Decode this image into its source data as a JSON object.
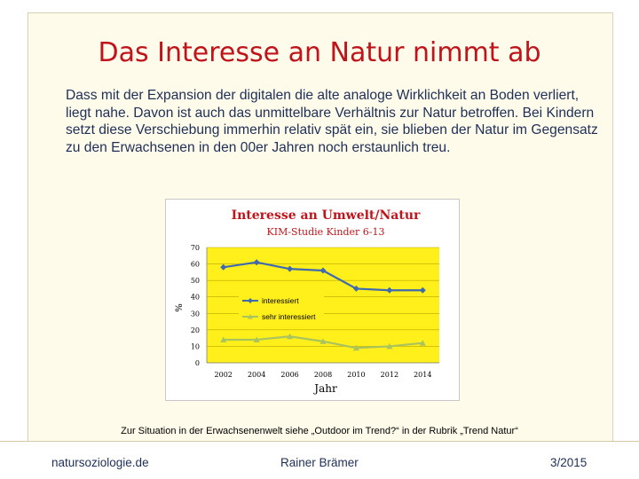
{
  "slide": {
    "title": "Das Interesse an Natur nimmt ab",
    "intro": "Dass mit der Expansion der digitalen die alte analoge Wirklichkeit an Boden verliert, liegt nahe. Davon ist auch das unmittelbare Verhältnis zur Natur betroffen. Bei Kindern setzt diese Verschiebung immerhin relativ spät ein, sie blieben der Natur im Gegensatz zu den Erwachsenen in den 00er Jahren noch erstaunlich treu.",
    "footnote": "Zur Situation in der Erwachsenenwelt siehe „Outdoor im Trend?“ in der Rubrik „Trend Natur“",
    "footer_left": "natursoziologie.de",
    "footer_center": "Rainer Brämer",
    "footer_right": "3/2015"
  },
  "colors": {
    "title": "#c0141c",
    "text": "#1e2f57",
    "plot_background": "#ffef1a",
    "series_interessiert": "#3f6ab0",
    "series_sehr_interessiert": "#a9c45c"
  },
  "chart_data": {
    "type": "line",
    "title": "Interesse an Umwelt/Natur",
    "subtitle": "KIM-Studie Kinder 6-13",
    "xlabel": "Jahr",
    "ylabel": "%",
    "x": [
      2002,
      2004,
      2006,
      2008,
      2010,
      2012,
      2014
    ],
    "ylim": [
      0,
      70
    ],
    "yticks": [
      0,
      10,
      20,
      30,
      40,
      50,
      60,
      70
    ],
    "grid": true,
    "legend": "center",
    "series": [
      {
        "name": "interessiert",
        "values": [
          58,
          61,
          57,
          56,
          45,
          44,
          44
        ]
      },
      {
        "name": "sehr interessiert",
        "values": [
          14,
          14,
          16,
          13,
          9,
          10,
          12
        ]
      }
    ]
  }
}
